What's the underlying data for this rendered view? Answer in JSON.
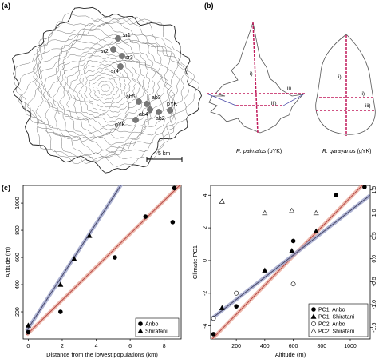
{
  "panels": {
    "a": {
      "label": "(a)",
      "sites": [
        {
          "id": "sr1",
          "label": "sr1"
        },
        {
          "id": "sr2",
          "label": "sr2"
        },
        {
          "id": "sr3",
          "label": "sr3"
        },
        {
          "id": "sr4",
          "label": "sr4"
        },
        {
          "id": "ab5",
          "label": "ab5"
        },
        {
          "id": "ab3",
          "label": "ab3"
        },
        {
          "id": "ab4",
          "label": "ab4"
        },
        {
          "id": "ab2",
          "label": "ab2"
        },
        {
          "id": "pYK",
          "label": "pYK"
        },
        {
          "id": "gYK",
          "label": "gYK"
        }
      ],
      "scale_bar_label": "5 km"
    },
    "b": {
      "label": "(b)",
      "leaf_left": {
        "species": "R. palmatus",
        "suffix": " (pYK)",
        "marks": [
          "i)",
          "ii)",
          "iii)"
        ]
      },
      "leaf_right": {
        "species": "R. garayanus",
        "suffix": " (gYK)",
        "marks": [
          "i)",
          "ii)",
          "iii)"
        ]
      },
      "colors": {
        "measure_line": "#c0185a",
        "guide_line": "#3a3aa0"
      }
    },
    "c": {
      "label": "(c)"
    }
  },
  "chart_data": [
    {
      "type": "scatter",
      "xlabel": "Distance from the lowest populations (km)",
      "ylabel": "Altitude (m)",
      "xlim": [
        -0.3,
        9
      ],
      "ylim": [
        0,
        1130
      ],
      "xticks": [
        0,
        2,
        4,
        6,
        8
      ],
      "yticks": [
        200,
        400,
        600,
        800,
        1000
      ],
      "series": [
        {
          "name": "Anbo",
          "marker": "circle",
          "x": [
            0,
            1.9,
            5.1,
            6.9,
            8.5,
            8.6
          ],
          "y": [
            50,
            200,
            600,
            900,
            860,
            1110
          ],
          "fit": {
            "x": [
              -0.1,
              9
            ],
            "y": [
              30,
              1140
            ]
          },
          "line_color": "#b04040",
          "band_color": "#e8a898"
        },
        {
          "name": "Shiratani",
          "marker": "triangle",
          "x": [
            0,
            1.9,
            2.7,
            3.6
          ],
          "y": [
            100,
            400,
            590,
            760
          ],
          "fit": {
            "x": [
              -0.1,
              5.5
            ],
            "y": [
              60,
              1140
            ]
          },
          "line_color": "#404060",
          "band_color": "#9aa0c8"
        }
      ],
      "legend": "bottom-right"
    },
    {
      "type": "scatter",
      "xlabel": "Altitude (m)",
      "ylabel": "Climate PC1",
      "xlim": [
        20,
        1140
      ],
      "ylim": [
        -4.8,
        4.6
      ],
      "y2lim": [
        -1.75,
        1.6
      ],
      "xticks": [
        200,
        400,
        600,
        800,
        1000
      ],
      "yticks": [
        -4,
        -2,
        0,
        2,
        4
      ],
      "y2ticks": [
        -1.5,
        -1.0,
        -0.5,
        0.0,
        0.5,
        1.0,
        1.5
      ],
      "series": [
        {
          "name": "PC1, Anbo",
          "marker": "circle-filled",
          "axis": "left",
          "x": [
            40,
            200,
            600,
            900,
            1100
          ],
          "y": [
            -4.5,
            -2.8,
            1.2,
            4.0,
            4.5
          ]
        },
        {
          "name": "PC1, Shiratani",
          "marker": "triangle-filled",
          "axis": "left",
          "x": [
            100,
            400,
            590,
            760
          ],
          "y": [
            -2.9,
            -0.6,
            0.6,
            1.8
          ]
        },
        {
          "name": "PC2, Anbo",
          "marker": "circle-open",
          "axis": "right",
          "x": [
            40,
            200,
            600,
            900,
            1100
          ],
          "y": [
            -1.3,
            -0.75,
            -0.55,
            -1.35,
            -1.35
          ]
        },
        {
          "name": "PC2, Shiratani",
          "marker": "triangle-open",
          "axis": "right",
          "x": [
            100,
            400,
            590,
            760
          ],
          "y": [
            1.25,
            1.0,
            1.05,
            1.0
          ]
        }
      ],
      "fits": [
        {
          "x": [
            20,
            1140
          ],
          "y": [
            -4.9,
            5.1
          ],
          "line_color": "#b04040",
          "band_color": "#e8a898"
        },
        {
          "x": [
            20,
            1140
          ],
          "y": [
            -3.6,
            4.0
          ],
          "line_color": "#404060",
          "band_color": "#9aa0c8"
        }
      ],
      "legend": "bottom-right"
    }
  ]
}
